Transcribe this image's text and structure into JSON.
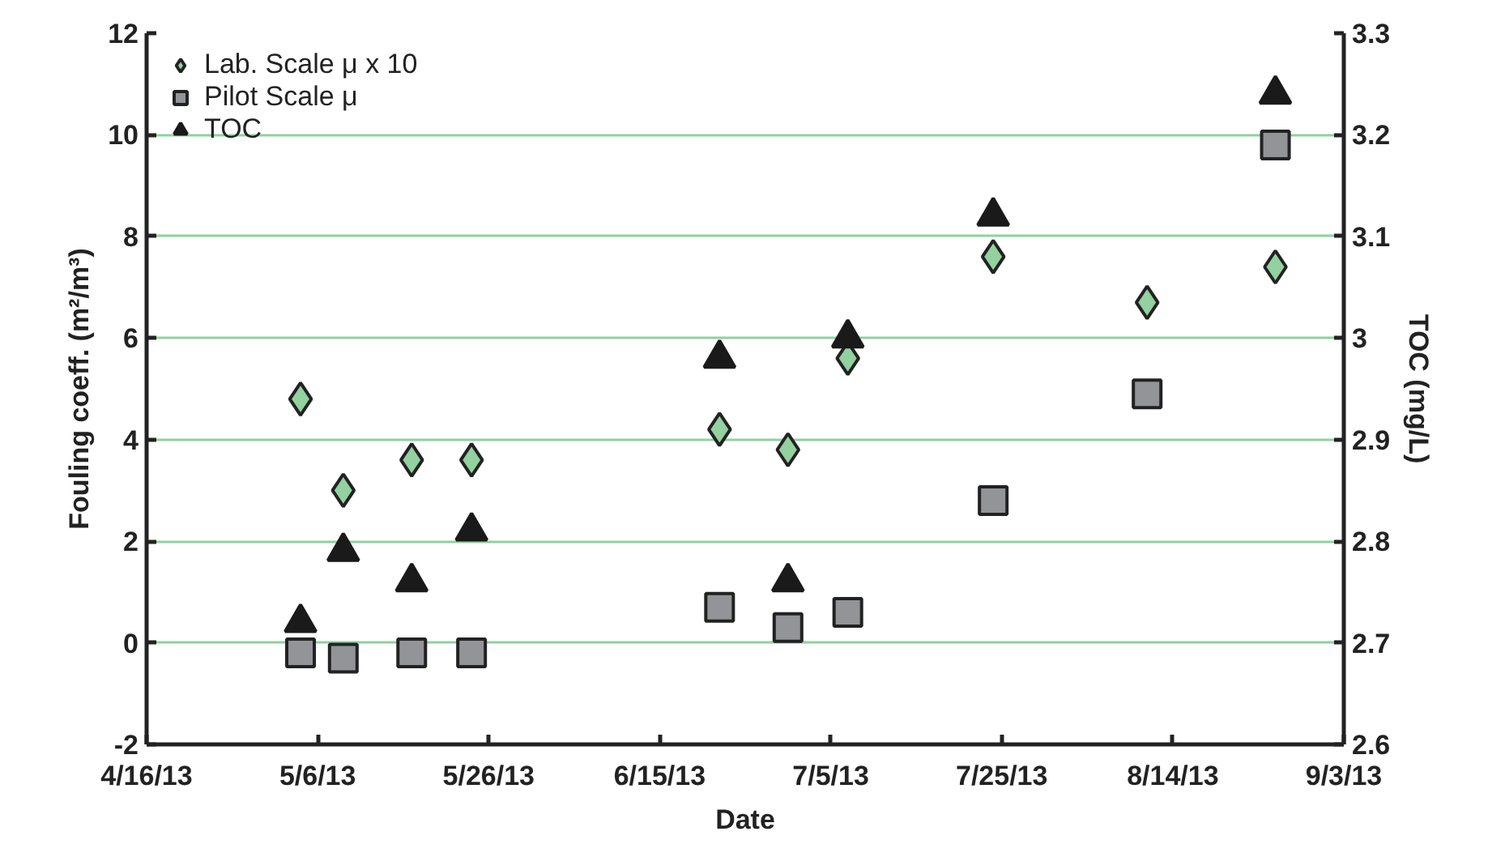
{
  "chart_data": {
    "type": "scatter",
    "xlabel": "Date",
    "ylabel": "Fouling coeff. (m²/m³)",
    "y2label": "TOC (mg/L)",
    "xlim": [
      "2013-04-16",
      "2013-09-03"
    ],
    "xticks": [
      {
        "value": "2013-04-16",
        "label": "4/16/13"
      },
      {
        "value": "2013-05-06",
        "label": "5/6/13"
      },
      {
        "value": "2013-05-26",
        "label": "5/26/13"
      },
      {
        "value": "2013-06-15",
        "label": "6/15/13"
      },
      {
        "value": "2013-07-05",
        "label": "7/5/13"
      },
      {
        "value": "2013-07-25",
        "label": "7/25/13"
      },
      {
        "value": "2013-08-14",
        "label": "8/14/13"
      },
      {
        "value": "2013-09-03",
        "label": "9/3/13"
      }
    ],
    "ylim": [
      -2,
      12
    ],
    "yticks": [
      -2,
      0,
      2,
      4,
      6,
      8,
      10,
      12
    ],
    "y2lim": [
      2.6,
      3.3
    ],
    "y2ticks": [
      2.6,
      2.7,
      2.8,
      2.9,
      3,
      3.1,
      3.2,
      3.3
    ],
    "grid": "y",
    "legend": "top left",
    "series": [
      {
        "name": "Lab. Scale μ x 10",
        "color": "#93d1a0",
        "marker": "diamond",
        "x": [
          "2013-05-04",
          "2013-05-09",
          "2013-05-17",
          "2013-05-24",
          "2013-06-22",
          "2013-06-30",
          "2013-07-07",
          "2013-07-24",
          "2013-08-11",
          "2013-08-26"
        ],
        "values": [
          4.8,
          3.0,
          3.6,
          3.6,
          4.2,
          3.8,
          5.6,
          7.6,
          6.7,
          7.4
        ]
      },
      {
        "name": "Pilot Scale μ",
        "color": "#929497",
        "marker": "square",
        "x": [
          "2013-05-04",
          "2013-05-09",
          "2013-05-17",
          "2013-05-24",
          "2013-06-22",
          "2013-06-30",
          "2013-07-07",
          "2013-07-24",
          "2013-08-11",
          "2013-08-26"
        ],
        "values": [
          -0.2,
          -0.3,
          -0.2,
          -0.2,
          0.7,
          0.3,
          0.6,
          2.8,
          4.9,
          9.8
        ]
      },
      {
        "name": "TOC",
        "color": "#1a1a1a",
        "marker": "triangle",
        "axis": "y2",
        "x": [
          "2013-05-04",
          "2013-05-09",
          "2013-05-17",
          "2013-05-24",
          "2013-06-22",
          "2013-06-30",
          "2013-07-07",
          "2013-07-24",
          "2013-08-26"
        ],
        "values": [
          2.72,
          2.79,
          2.76,
          2.81,
          2.98,
          2.76,
          3.0,
          3.12,
          3.24
        ]
      }
    ]
  }
}
